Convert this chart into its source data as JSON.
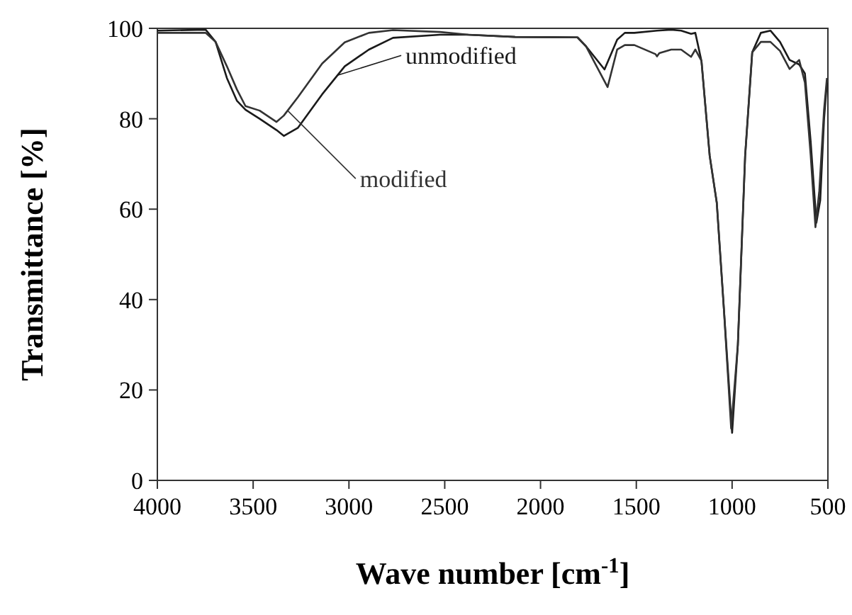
{
  "chart_data": {
    "type": "line",
    "xlabel": "Wave number [cm$^{-1}$]",
    "ylabel": "Transmittance [%]",
    "xlim": [
      4000,
      500
    ],
    "xticks": [
      4000,
      3500,
      3000,
      2500,
      2000,
      1500,
      1000,
      500
    ],
    "ylim": [
      0,
      100
    ],
    "yticks": [
      0,
      20,
      40,
      60,
      80,
      100
    ],
    "grid": false,
    "marker": "none",
    "line_style": "solid",
    "series": [
      {
        "name": "unmodified",
        "color": "#1a1a1a",
        "x": [
          4000,
          3748,
          3696,
          3637,
          3585,
          3540,
          3466,
          3378,
          3340,
          3266,
          3140,
          3022,
          2896,
          2770,
          2525,
          2377,
          2133,
          1807,
          1762,
          1666,
          1600,
          1560,
          1510,
          1392,
          1318,
          1266,
          1214,
          1192,
          1160,
          1117,
          1080,
          1043,
          1000,
          970,
          932,
          895,
          850,
          800,
          750,
          700,
          650,
          620,
          590,
          560,
          540,
          520,
          505
        ],
        "values": [
          99.5,
          99.7,
          97,
          89,
          84,
          82,
          80,
          77.5,
          76.2,
          78,
          85.4,
          91.6,
          95.3,
          97.9,
          98.6,
          98.6,
          98.1,
          98,
          96,
          90.9,
          97.5,
          99,
          99,
          99.5,
          99.7,
          99.5,
          98.8,
          99,
          92.8,
          71.8,
          61.4,
          38,
          10.5,
          30,
          71.8,
          94.7,
          99,
          99.5,
          97,
          93,
          92,
          90,
          75,
          57,
          62,
          80,
          88
        ]
      },
      {
        "name": "modified",
        "color": "#333333",
        "x": [
          4000,
          3748,
          3696,
          3637,
          3585,
          3540,
          3466,
          3378,
          3340,
          3266,
          3140,
          3022,
          2896,
          2770,
          2525,
          2377,
          2133,
          1807,
          1762,
          1650,
          1600,
          1560,
          1510,
          1400,
          1392,
          1380,
          1318,
          1266,
          1214,
          1192,
          1160,
          1117,
          1080,
          1043,
          1005,
          970,
          932,
          895,
          850,
          800,
          750,
          700,
          650,
          620,
          590,
          565,
          545,
          520,
          505
        ],
        "values": [
          99,
          99,
          97,
          91.6,
          86.5,
          82.8,
          81.8,
          79.3,
          80.7,
          84.8,
          92.2,
          96.9,
          99,
          99.6,
          99.2,
          98.6,
          98.1,
          98,
          96,
          87,
          95.3,
          96.3,
          96.3,
          94.3,
          93.8,
          94.5,
          95.3,
          95.3,
          93.7,
          95.3,
          92.8,
          71.8,
          61.4,
          38,
          11.5,
          30,
          71.8,
          94.7,
          97,
          97,
          95,
          91,
          93,
          88,
          72,
          56,
          64,
          82,
          89
        ]
      }
    ]
  }
}
